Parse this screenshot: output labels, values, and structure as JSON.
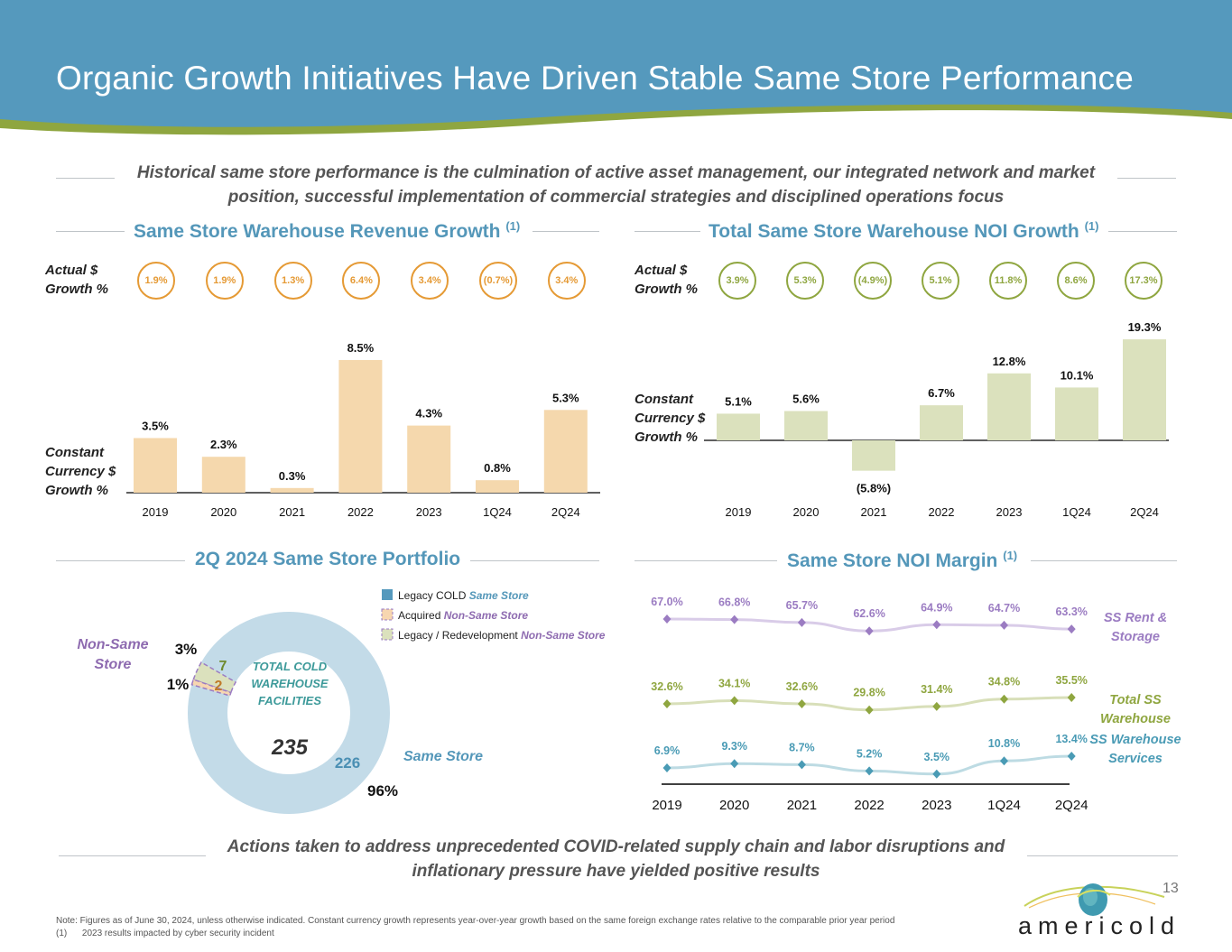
{
  "header": {
    "title": "Organic Growth Initiatives Have Driven Stable Same Store Performance",
    "colors": {
      "blue": "#5599bd",
      "green": "#8fa640"
    }
  },
  "intro": "Historical same store performance is the culmination of active asset management, our integrated network and market position, successful implementation of commercial strategies and disciplined operations focus",
  "revenue": {
    "title": "Same Store Warehouse Revenue Growth",
    "footnote": "(1)",
    "actual_label": [
      "Actual $",
      "Growth %"
    ],
    "constant_label": [
      "Constant",
      "Currency $",
      "Growth %"
    ],
    "circle_color": "#e59a35",
    "bar_color": "#f5d8ad"
  },
  "noi": {
    "title": "Total Same Store Warehouse NOI Growth",
    "footnote": "(1)",
    "actual_label": [
      "Actual $",
      "Growth %"
    ],
    "constant_label": [
      "Constant",
      "Currency $",
      "Growth %"
    ],
    "circle_color": "#8fa640",
    "bar_color": "#dbe1bd"
  },
  "portfolio": {
    "title": "2Q 2024 Same Store Portfolio",
    "center_lines": [
      "TOTAL COLD",
      "WAREHOUSE",
      "FACILITIES"
    ],
    "total": "235",
    "non_same_store_label": [
      "Non-Same",
      "Store"
    ],
    "same_store_label": "Same Store",
    "legend": [
      {
        "prefix": "Legacy COLD",
        "suffix": "Same Store",
        "suffix_color": "#5497b9",
        "swatch": "#5599bd",
        "dashed": false
      },
      {
        "prefix": "Acquired",
        "suffix": "Non-Same Store",
        "suffix_color": "#8e6bb0",
        "swatch": "#f7d6b0",
        "dashed": true
      },
      {
        "prefix": "Legacy / Redevelopment",
        "suffix": "Non-Same Store",
        "suffix_color": "#8e6bb0",
        "swatch": "#dbe1bd",
        "dashed": true
      }
    ]
  },
  "margin": {
    "title": "Same Store NOI Margin",
    "footnote": "(1)"
  },
  "closing": "Actions taken to address unprecedented COVID-related supply chain and labor disruptions and inflationary pressure have yielded positive results",
  "notes": [
    "Note: Figures as of June 30, 2024, unless otherwise indicated. Constant currency growth represents year-over-year growth based on the same foreign exchange rates relative to the comparable prior year period",
    "(1)      2023 results impacted by cyber security incident"
  ],
  "page_number": "13",
  "logo": {
    "text": "americold",
    "icon": "globe-swoosh-icon"
  },
  "chart_data": [
    {
      "type": "bar",
      "title": "Same Store Warehouse Revenue Growth (1)",
      "categories": [
        "2019",
        "2020",
        "2021",
        "2022",
        "2023",
        "1Q24",
        "2Q24"
      ],
      "series": [
        {
          "name": "Constant Currency $ Growth %",
          "values": [
            3.5,
            2.3,
            0.3,
            8.5,
            4.3,
            0.8,
            5.3
          ],
          "labels": [
            "3.5%",
            "2.3%",
            "0.3%",
            "8.5%",
            "4.3%",
            "0.8%",
            "5.3%"
          ]
        },
        {
          "name": "Actual $ Growth %",
          "values": [
            1.9,
            1.9,
            1.3,
            6.4,
            3.4,
            -0.7,
            3.4
          ],
          "labels": [
            "1.9%",
            "1.9%",
            "1.3%",
            "6.4%",
            "3.4%",
            "(0.7%)",
            "3.4%"
          ]
        }
      ],
      "ylim": [
        0,
        9
      ]
    },
    {
      "type": "bar",
      "title": "Total Same Store Warehouse NOI Growth (1)",
      "categories": [
        "2019",
        "2020",
        "2021",
        "2022",
        "2023",
        "1Q24",
        "2Q24"
      ],
      "series": [
        {
          "name": "Constant Currency $ Growth %",
          "values": [
            5.1,
            5.6,
            -5.8,
            6.7,
            12.8,
            10.1,
            19.3
          ],
          "labels": [
            "5.1%",
            "5.6%",
            "(5.8%)",
            "6.7%",
            "12.8%",
            "10.1%",
            "19.3%"
          ]
        },
        {
          "name": "Actual $ Growth %",
          "values": [
            3.9,
            5.3,
            -4.9,
            5.1,
            11.8,
            8.6,
            17.3
          ],
          "labels": [
            "3.9%",
            "5.3%",
            "(4.9%)",
            "5.1%",
            "11.8%",
            "8.6%",
            "17.3%"
          ]
        }
      ],
      "ylim": [
        -6,
        20
      ]
    },
    {
      "type": "pie",
      "title": "2Q 2024 Same Store Portfolio",
      "slices": [
        {
          "name": "Legacy COLD Same Store",
          "count": 226,
          "percent": "96%",
          "color": "#c3dbe8",
          "label_color": "#4a8fb3"
        },
        {
          "name": "Acquired Non-Same Store",
          "count": 2,
          "percent": "1%",
          "color": "#f7d6b0",
          "label_color": "#c07a28"
        },
        {
          "name": "Legacy / Redevelopment Non-Same Store",
          "count": 7,
          "percent": "3%",
          "color": "#dbe1bd",
          "label_color": "#6f8a2e"
        }
      ],
      "total": 235
    },
    {
      "type": "line",
      "title": "Same Store NOI Margin (1)",
      "x": [
        "2019",
        "2020",
        "2021",
        "2022",
        "2023",
        "1Q24",
        "2Q24"
      ],
      "series": [
        {
          "name": "SS Rent & Storage",
          "values": [
            67.0,
            66.8,
            65.7,
            62.6,
            64.9,
            64.7,
            63.3
          ],
          "color": "#9b7cc2",
          "line_color": "#d9cce8"
        },
        {
          "name": "Total SS Warehouse",
          "values": [
            32.6,
            34.1,
            32.6,
            29.8,
            31.4,
            34.8,
            35.5
          ],
          "color": "#8fa640",
          "line_color": "#d8dfb9"
        },
        {
          "name": "SS Warehouse Services",
          "values": [
            6.9,
            9.3,
            8.7,
            5.2,
            3.5,
            10.8,
            13.4
          ],
          "color": "#4a9bb5",
          "line_color": "#bddbe3"
        }
      ],
      "series_labels": [
        [
          "SS Rent &",
          "Storage"
        ],
        [
          "Total SS",
          "Warehouse"
        ],
        [
          "SS Warehouse",
          "Services"
        ]
      ]
    }
  ]
}
